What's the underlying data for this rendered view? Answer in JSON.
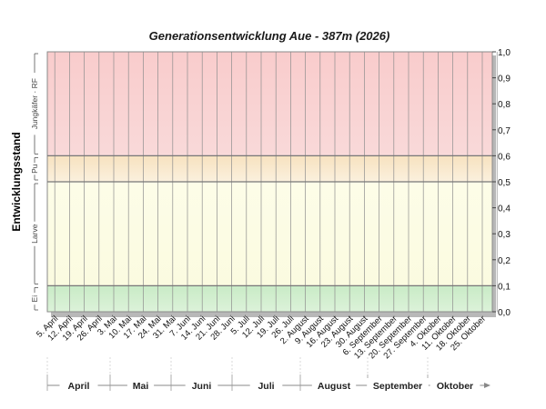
{
  "chart_data": {
    "type": "line",
    "title": "Generationsentwicklung Aue - 387m (2026)",
    "ylabel": "Entwicklungsstand",
    "ylim": [
      0,
      1
    ],
    "y_ticks": [
      "0,0",
      "0,1",
      "0,2",
      "0,3",
      "0,4",
      "0,5",
      "0,6",
      "0,7",
      "0,8",
      "0,9",
      "1,0"
    ],
    "x_ticks": [
      "5. April",
      "12. April",
      "19. April",
      "26. April",
      "3. Mai",
      "10. Mai",
      "17. Mai",
      "24. Mai",
      "31. Mai",
      "7. Juni",
      "14. Juni",
      "21. Juni",
      "28. Juni",
      "5. Juli",
      "12. Juli",
      "19. Juli",
      "26. Juli",
      "2. August",
      "9. August",
      "16. August",
      "23. August",
      "30. August",
      "6. September",
      "13. September",
      "20. September",
      "27. September",
      "4. Oktober",
      "11. Oktober",
      "18. Oktober",
      "25. Oktober"
    ],
    "months": [
      "April",
      "Mai",
      "Juni",
      "Juli",
      "August",
      "September",
      "Oktober"
    ],
    "stage_bands": [
      {
        "label": "Ei",
        "from": 0.0,
        "to": 0.1,
        "color": "#cfeccb"
      },
      {
        "label": "Larve",
        "from": 0.1,
        "to": 0.5,
        "color": "#fbfbe4"
      },
      {
        "label": "Pu",
        "from": 0.5,
        "to": 0.6,
        "color": "#f7ecd0"
      },
      {
        "label": "Jungkäfer - RF",
        "from": 0.6,
        "to": 1.0,
        "color": "#f8d3d3"
      }
    ],
    "series": [],
    "grid": true
  }
}
